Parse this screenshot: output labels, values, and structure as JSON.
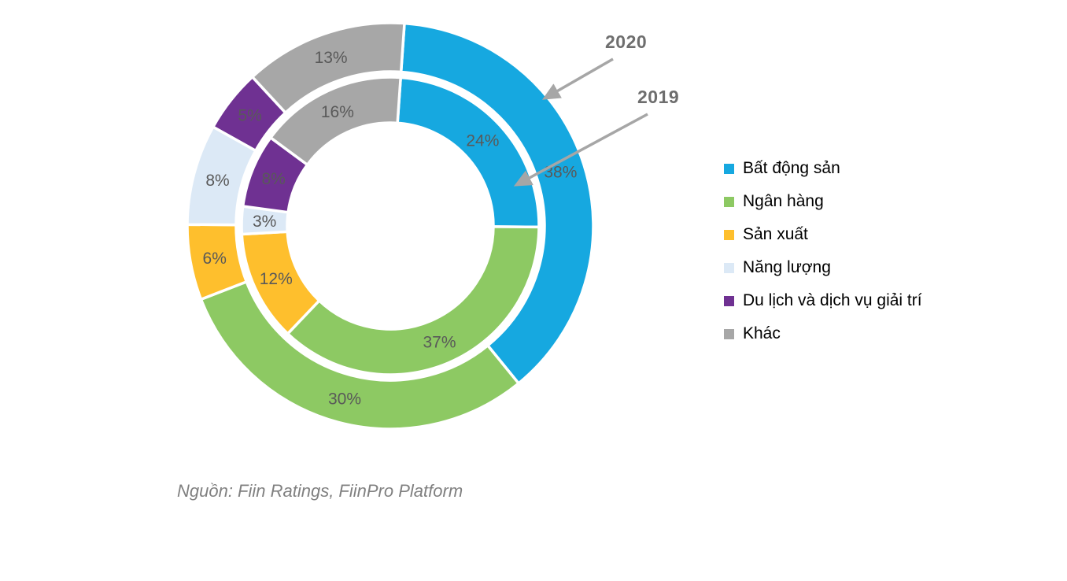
{
  "chart_data": {
    "type": "donut",
    "title": "",
    "categories": [
      "Bất động sản",
      "Ngân hàng",
      "Sản xuất",
      "Năng lượng",
      "Du lịch và dịch vụ giải trí",
      "Khác"
    ],
    "colors": [
      "#16A8E0",
      "#8DC963",
      "#FEBF2D",
      "#DCE9F6",
      "#6F3192",
      "#A7A7A7"
    ],
    "series": [
      {
        "name": "2020",
        "ring": "outer",
        "values": [
          38,
          30,
          6,
          8,
          5,
          13
        ]
      },
      {
        "name": "2019",
        "ring": "inner",
        "values": [
          24,
          37,
          12,
          3,
          8,
          16
        ]
      }
    ],
    "value_suffix": "%",
    "start_angle_deg": 4,
    "label_color": "#595959",
    "legend_position": "right",
    "grid": false
  },
  "annotations": {
    "outer_ring_label": "2020",
    "inner_ring_label": "2019",
    "arrow_color": "#A6A6A6",
    "year_label_color": "#6E6E6E"
  },
  "source_note": "Nguồn: Fiin Ratings, FiinPro Platform"
}
